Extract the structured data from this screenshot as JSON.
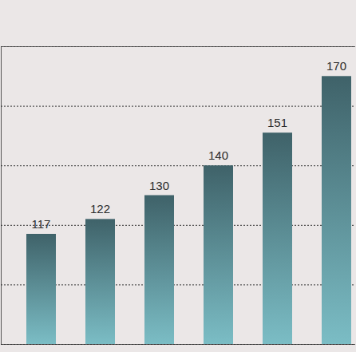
{
  "chart_data": {
    "type": "bar",
    "categories": [
      null,
      null,
      null,
      null,
      null,
      null
    ],
    "values": [
      117,
      122,
      130,
      140,
      151,
      170
    ],
    "color": "#3f6269",
    "ylim": [
      80,
      180
    ],
    "yticks": [
      80,
      100,
      120,
      140,
      160,
      180
    ],
    "grid": true,
    "data_labels": true,
    "tick_labels": false
  }
}
